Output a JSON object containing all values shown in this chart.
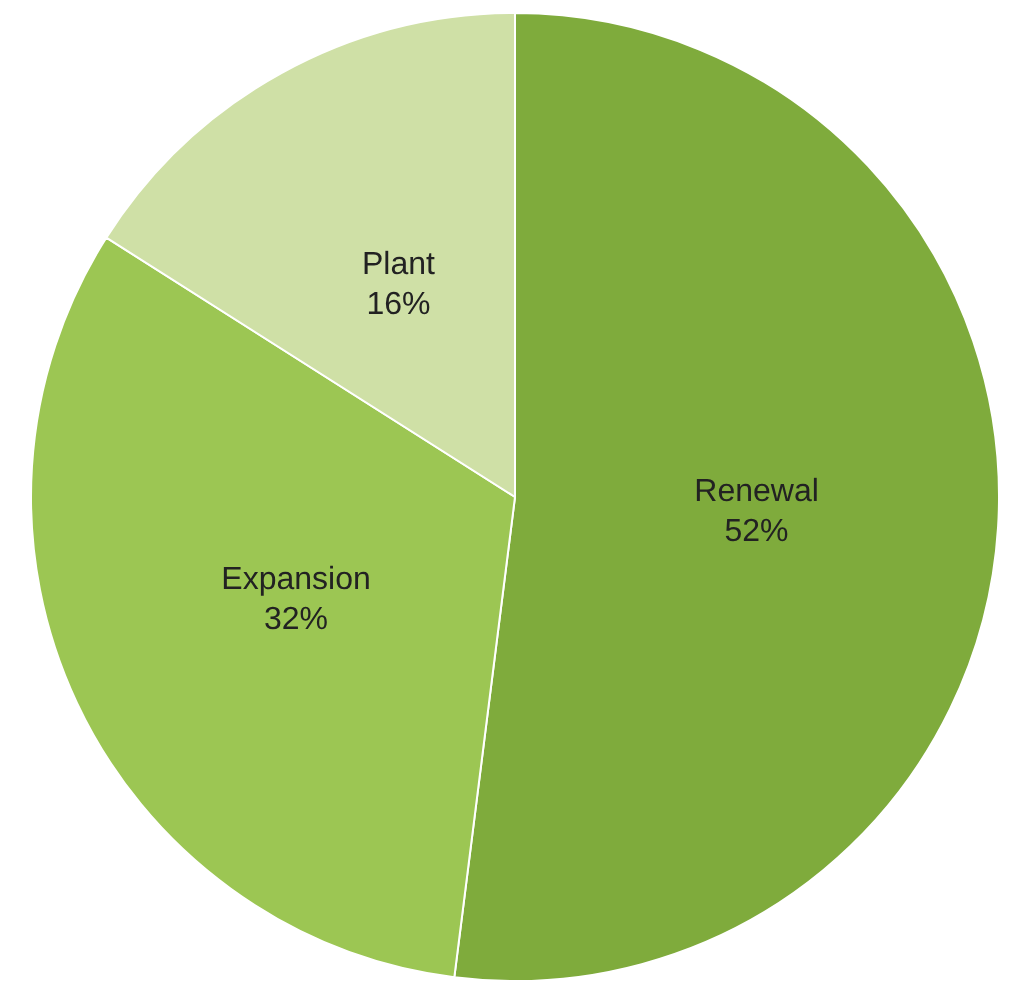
{
  "chart_data": {
    "type": "pie",
    "categories": [
      "Renewal",
      "Expansion",
      "Plant"
    ],
    "values": [
      52,
      32,
      16
    ],
    "colors": [
      "#7fab3c",
      "#9cc653",
      "#cfe0a6"
    ],
    "value_labels": [
      "52%",
      "32%",
      "16%"
    ],
    "legend": false
  }
}
